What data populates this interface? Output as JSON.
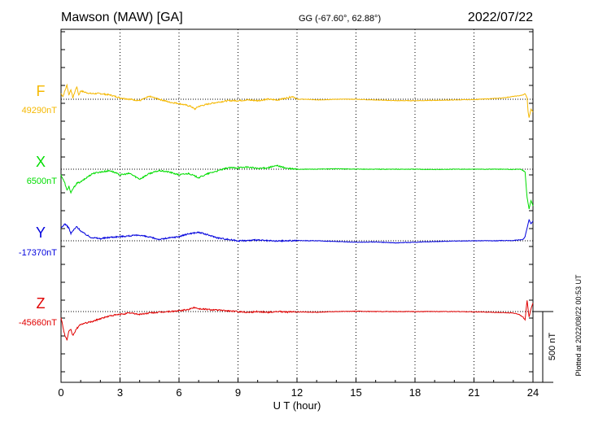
{
  "header": {
    "station": "Mawson (MAW)  [GA]",
    "coords": "GG (-67.60°,  62.88°)",
    "date": "2022/07/22"
  },
  "footer": {
    "plotted_note": "Plotted at 2022/08/22 00:53 UT"
  },
  "chart_data": {
    "type": "line",
    "title": "Mawson (MAW)  [GA]",
    "xlabel": "U T (hour)",
    "xlim": [
      0,
      24
    ],
    "xticks": [
      "0",
      "3",
      "6",
      "9",
      "12",
      "15",
      "18",
      "21",
      "24"
    ],
    "grid": "vertical dotted every 3 hours",
    "scale_bar": {
      "label": "500 nT",
      "nT": 500
    },
    "series": [
      {
        "name": "F",
        "color": "#f5b800",
        "baseline_label": "49290nT",
        "baseline_nT": 49290,
        "t": [
          0,
          0.1,
          0.2,
          0.3,
          0.4,
          0.5,
          0.6,
          0.7,
          0.8,
          0.9,
          1.0,
          1.2,
          1.5,
          2.0,
          2.5,
          3.0,
          3.5,
          4.0,
          4.5,
          5.0,
          5.5,
          6.0,
          6.3,
          6.6,
          6.8,
          7.0,
          7.3,
          7.6,
          8.0,
          8.5,
          9.0,
          9.5,
          10.0,
          10.5,
          11.0,
          11.5,
          11.8,
          12.0,
          12.5,
          13,
          14,
          15,
          16,
          17,
          18,
          19,
          20,
          21,
          22,
          22.5,
          23,
          23.3,
          23.5,
          23.6,
          23.7,
          23.75,
          23.8,
          23.9,
          24
        ],
        "v": [
          49330,
          49310,
          49350,
          49390,
          49320,
          49360,
          49300,
          49340,
          49380,
          49320,
          49350,
          49340,
          49330,
          49330,
          49320,
          49300,
          49290,
          49280,
          49310,
          49290,
          49270,
          49260,
          49250,
          49240,
          49220,
          49240,
          49250,
          49260,
          49270,
          49280,
          49280,
          49285,
          49280,
          49290,
          49285,
          49300,
          49310,
          49290,
          49290,
          49285,
          49290,
          49290,
          49285,
          49280,
          49280,
          49282,
          49285,
          49288,
          49295,
          49300,
          49310,
          49315,
          49320,
          49330,
          49300,
          49200,
          49160,
          49220,
          49200
        ]
      },
      {
        "name": "X",
        "color": "#00dd00",
        "baseline_label": "6500nT",
        "baseline_nT": 6500,
        "t": [
          0,
          0.1,
          0.2,
          0.3,
          0.4,
          0.5,
          0.6,
          0.8,
          1.0,
          1.3,
          1.6,
          2.0,
          2.5,
          3.0,
          3.5,
          4.0,
          4.5,
          5.0,
          5.5,
          6.0,
          6.5,
          7.0,
          7.5,
          8.0,
          8.5,
          9.0,
          9.5,
          10.0,
          10.5,
          11.0,
          11.5,
          12.0,
          13,
          14,
          15,
          16,
          17,
          18,
          19,
          20,
          21,
          22,
          22.5,
          23,
          23.4,
          23.6,
          23.7,
          23.8,
          23.9,
          24
        ],
        "v": [
          6460,
          6430,
          6400,
          6350,
          6380,
          6330,
          6360,
          6400,
          6410,
          6440,
          6470,
          6480,
          6490,
          6460,
          6470,
          6430,
          6470,
          6490,
          6480,
          6460,
          6470,
          6440,
          6470,
          6490,
          6510,
          6510,
          6515,
          6505,
          6510,
          6525,
          6505,
          6500,
          6500,
          6503,
          6500,
          6500,
          6500,
          6500,
          6498,
          6500,
          6500,
          6500,
          6500,
          6498,
          6500,
          6480,
          6300,
          6220,
          6280,
          6240
        ]
      },
      {
        "name": "Y",
        "color": "#0000dd",
        "baseline_label": "-17370nT",
        "baseline_nT": -17370,
        "t": [
          0,
          0.2,
          0.4,
          0.5,
          0.6,
          0.8,
          1.0,
          1.2,
          1.5,
          2.0,
          2.5,
          3.0,
          3.5,
          4.0,
          4.5,
          5.0,
          5.5,
          6.0,
          6.5,
          7.0,
          7.5,
          8.0,
          8.5,
          9.0,
          9.5,
          10.0,
          10.5,
          11.0,
          11.5,
          12.0,
          13,
          14,
          15,
          16,
          17,
          18,
          19,
          20,
          21,
          22,
          22.5,
          23,
          23.5,
          23.6,
          23.7,
          23.8,
          23.9,
          24
        ],
        "v": [
          -17280,
          -17250,
          -17280,
          -17320,
          -17300,
          -17270,
          -17300,
          -17320,
          -17345,
          -17355,
          -17345,
          -17340,
          -17335,
          -17330,
          -17345,
          -17360,
          -17350,
          -17340,
          -17320,
          -17310,
          -17330,
          -17350,
          -17360,
          -17370,
          -17368,
          -17365,
          -17370,
          -17372,
          -17370,
          -17368,
          -17370,
          -17375,
          -17380,
          -17378,
          -17385,
          -17380,
          -17375,
          -17372,
          -17370,
          -17370,
          -17368,
          -17368,
          -17360,
          -17340,
          -17280,
          -17220,
          -17250,
          -17230
        ]
      },
      {
        "name": "Z",
        "color": "#e00000",
        "baseline_label": "-45660nT",
        "baseline_nT": -45660,
        "t": [
          0,
          0.1,
          0.2,
          0.3,
          0.4,
          0.5,
          0.6,
          0.8,
          1.0,
          1.3,
          1.6,
          2.0,
          2.5,
          3.0,
          3.5,
          4.0,
          4.5,
          5.0,
          5.5,
          6.0,
          6.5,
          6.8,
          7.0,
          7.5,
          8.0,
          8.5,
          9.0,
          9.5,
          10.0,
          10.5,
          11.0,
          11.5,
          12.0,
          13,
          14,
          15,
          16,
          17,
          18,
          19,
          20,
          21,
          22,
          23,
          23.3,
          23.5,
          23.6,
          23.7,
          23.8,
          23.9,
          24
        ],
        "v": [
          -45700,
          -45770,
          -45830,
          -45860,
          -45800,
          -45790,
          -45830,
          -45780,
          -45750,
          -45740,
          -45730,
          -45710,
          -45690,
          -45680,
          -45670,
          -45680,
          -45670,
          -45665,
          -45660,
          -45655,
          -45645,
          -45630,
          -45640,
          -45645,
          -45650,
          -45655,
          -45660,
          -45665,
          -45660,
          -45665,
          -45660,
          -45663,
          -45662,
          -45665,
          -45660,
          -45658,
          -45660,
          -45660,
          -45660,
          -45660,
          -45660,
          -45662,
          -45665,
          -45670,
          -45680,
          -45700,
          -45720,
          -45580,
          -45700,
          -45640,
          -45600
        ]
      }
    ]
  }
}
